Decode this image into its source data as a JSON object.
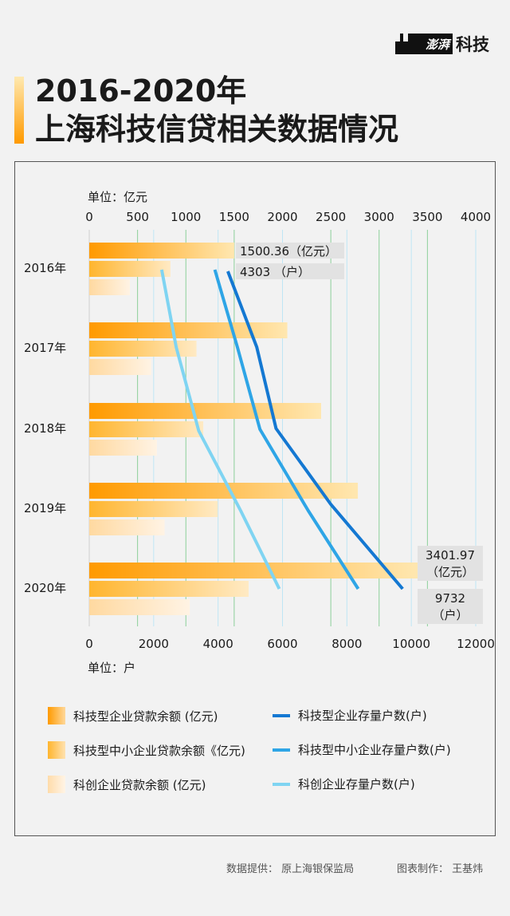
{
  "brand": {
    "logo_text": "澎湃",
    "sub_text": "科技"
  },
  "title": {
    "line1": "2016-2020年",
    "line2": "上海科技信贷相关数据情况"
  },
  "colors": {
    "bar1": "#ff9a00",
    "bar2": "#ffc766",
    "bar3": "#ffe6c2",
    "line1": "#1478d2",
    "line2": "#2ea5e6",
    "line3": "#7fd4f2",
    "grid": "#8ccf9a"
  },
  "chart_data": {
    "type": "bar",
    "categories": [
      "2016年",
      "2017年",
      "2018年",
      "2019年",
      "2020年"
    ],
    "top_axis": {
      "unit_label": "单位：亿元",
      "ticks": [
        0,
        500,
        1000,
        1500,
        2000,
        2500,
        3000,
        3500,
        4000
      ],
      "range": [
        0,
        4000
      ]
    },
    "bottom_axis": {
      "unit_label": "单位：户",
      "ticks": [
        0,
        2000,
        4000,
        6000,
        8000,
        10000,
        12000
      ],
      "range": [
        0,
        12000
      ]
    },
    "bar_series": [
      {
        "name": "科技型企业贷款余额 (亿元)",
        "values": [
          1500.36,
          2050,
          2400,
          2780,
          3401.97
        ]
      },
      {
        "name": "科技型中小企业贷款余额《亿元)",
        "values": [
          840,
          1110,
          1180,
          1330,
          1650
        ]
      },
      {
        "name": "科创企业贷款余额 (亿元)",
        "values": [
          420,
          640,
          700,
          780,
          1040
        ]
      }
    ],
    "line_series": [
      {
        "name": "科技型企业存量户数(户)",
        "values": [
          4303,
          5200,
          5800,
          7500,
          9732
        ]
      },
      {
        "name": "科技型中小企业存量户数(户)",
        "values": [
          3900,
          4600,
          5300,
          6800,
          8350
        ]
      },
      {
        "name": "科创企业存量户数(户)",
        "values": [
          2250,
          2700,
          3400,
          4700,
          5900
        ]
      }
    ],
    "annotations": {
      "first_value": "1500.36（亿元）",
      "first_count": "4303 （户）",
      "last_value": "3401.97",
      "last_value_unit": "（亿元）",
      "last_count": "9732",
      "last_count_unit": "（户）"
    }
  },
  "legend": {
    "bar1": "科技型企业贷款余额 (亿元)",
    "bar2": "科技型中小企业贷款余额《亿元)",
    "bar3": "科创企业贷款余额 (亿元)",
    "line1": "科技型企业存量户数(户)",
    "line2": "科技型中小企业存量户数(户)",
    "line3": "科创企业存量户数(户)"
  },
  "footer": {
    "source": "数据提供：  原上海银保监局",
    "author": "图表制作：  王基炜"
  }
}
